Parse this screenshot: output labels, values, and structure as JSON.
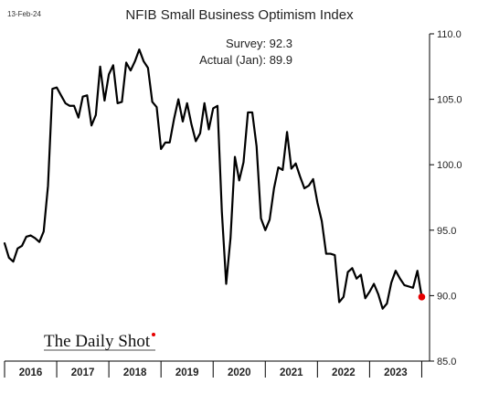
{
  "date_label": "13-Feb-24",
  "annotations": {
    "survey": "Survey:  92.3",
    "actual": "Actual (Jan):  89.9"
  },
  "brand": "The Daily Shot",
  "colors": {
    "line": "#000000",
    "last_point": "#e60000",
    "axis": "#000000"
  },
  "chart_data": {
    "type": "line",
    "title": "NFIB Small Business Optimism Index",
    "xlabel": "",
    "ylabel": "",
    "ylim": [
      85,
      110
    ],
    "yticks": [
      85,
      90,
      95,
      100,
      105,
      110
    ],
    "ytick_labels": [
      "85.0",
      "90.0",
      "95.0",
      "100.0",
      "105.0",
      "110.0"
    ],
    "xlim": [
      2016.0,
      2024.15
    ],
    "year_labels": [
      "2016",
      "2017",
      "2018",
      "2019",
      "2020",
      "2021",
      "2022",
      "2023"
    ],
    "grid": false,
    "x": [
      2016.0,
      2016.083,
      2016.167,
      2016.25,
      2016.333,
      2016.417,
      2016.5,
      2016.583,
      2016.667,
      2016.75,
      2016.833,
      2016.917,
      2017.0,
      2017.083,
      2017.167,
      2017.25,
      2017.333,
      2017.417,
      2017.5,
      2017.583,
      2017.667,
      2017.75,
      2017.833,
      2017.917,
      2018.0,
      2018.083,
      2018.167,
      2018.25,
      2018.333,
      2018.417,
      2018.5,
      2018.583,
      2018.667,
      2018.75,
      2018.833,
      2018.917,
      2019.0,
      2019.083,
      2019.167,
      2019.25,
      2019.333,
      2019.417,
      2019.5,
      2019.583,
      2019.667,
      2019.75,
      2019.833,
      2019.917,
      2020.0,
      2020.083,
      2020.167,
      2020.25,
      2020.333,
      2020.417,
      2020.5,
      2020.583,
      2020.667,
      2020.75,
      2020.833,
      2020.917,
      2021.0,
      2021.083,
      2021.167,
      2021.25,
      2021.333,
      2021.417,
      2021.5,
      2021.583,
      2021.667,
      2021.75,
      2021.833,
      2021.917,
      2022.0,
      2022.083,
      2022.167,
      2022.25,
      2022.333,
      2022.417,
      2022.5,
      2022.583,
      2022.667,
      2022.75,
      2022.833,
      2022.917,
      2023.0,
      2023.083,
      2023.167,
      2023.25,
      2023.333,
      2023.417,
      2023.5,
      2023.583,
      2023.667,
      2023.75,
      2023.833,
      2023.917,
      2024.0
    ],
    "series": [
      {
        "values": [
          94.0,
          92.9,
          92.6,
          93.6,
          93.8,
          94.5,
          94.6,
          94.4,
          94.1,
          94.9,
          98.4,
          105.8,
          105.9,
          105.3,
          104.7,
          104.5,
          104.5,
          103.6,
          105.2,
          105.3,
          103.0,
          103.8,
          107.5,
          104.9,
          106.9,
          107.6,
          104.7,
          104.8,
          107.8,
          107.2,
          107.9,
          108.8,
          107.9,
          107.4,
          104.8,
          104.4,
          101.2,
          101.7,
          101.7,
          103.5,
          105.0,
          103.3,
          104.7,
          103.1,
          101.8,
          102.4,
          104.7,
          102.7,
          104.3,
          104.5,
          96.4,
          90.9,
          94.4,
          100.6,
          98.8,
          100.2,
          104.0,
          104.0,
          101.4,
          95.9,
          95.0,
          95.8,
          98.2,
          99.8,
          99.6,
          102.5,
          99.7,
          100.1,
          99.1,
          98.2,
          98.4,
          98.9,
          97.1,
          95.7,
          93.2,
          93.2,
          93.1,
          89.5,
          89.9,
          91.8,
          92.1,
          91.3,
          91.6,
          89.8,
          90.3,
          90.9,
          90.1,
          89.0,
          89.4,
          91.0,
          91.9,
          91.3,
          90.8,
          90.7,
          90.6,
          91.9,
          89.9
        ]
      }
    ]
  }
}
